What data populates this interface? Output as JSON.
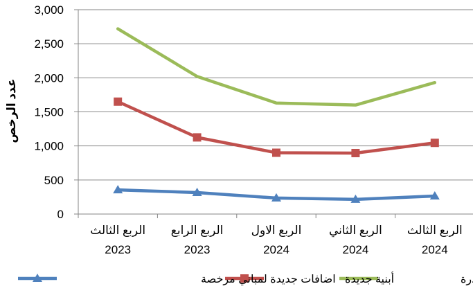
{
  "chart_data": {
    "type": "line",
    "title": "",
    "xlabel": "",
    "ylabel": "عدد الرخص",
    "ylim": [
      0,
      3000
    ],
    "yticks": [
      0,
      500,
      1000,
      1500,
      2000,
      2500,
      3000
    ],
    "ytick_labels": [
      "0",
      "500",
      "1,000",
      "1,500",
      "2,000",
      "2,500",
      "3,000"
    ],
    "grid": "horizontal",
    "legend_position": "bottom",
    "categories": [
      {
        "line1": "الربع الثالث",
        "line2": "2023"
      },
      {
        "line1": "الربع الرابع",
        "line2": "2023"
      },
      {
        "line1": "الربع الاول",
        "line2": "2024"
      },
      {
        "line1": "الربع الثاني",
        "line2": "2024"
      },
      {
        "line1": "الربع الثالث",
        "line2": "2024"
      }
    ],
    "series": [
      {
        "name": "الرخص الصادرة",
        "color": "#9BBB59",
        "marker": "none",
        "values": [
          2720,
          2020,
          1630,
          1600,
          1930
        ]
      },
      {
        "name": "أبنية جديدة",
        "color": "#C0504D",
        "marker": "square",
        "values": [
          1650,
          1125,
          900,
          895,
          1045
        ]
      },
      {
        "name": "اضافات جديدة لمباني مرخصة",
        "color": "#4F81BD",
        "marker": "triangle",
        "values": [
          355,
          315,
          235,
          215,
          265
        ]
      }
    ]
  }
}
